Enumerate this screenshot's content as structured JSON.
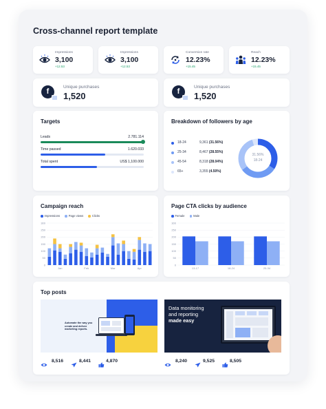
{
  "report": {
    "title": "Cross-channel report template"
  },
  "kpis": [
    {
      "label": "Impressions",
      "value": "3,100",
      "change": "+12.53",
      "icon": "eye-icon"
    },
    {
      "label": "Impressions",
      "value": "3,100",
      "change": "+12.53",
      "icon": "eye-icon"
    },
    {
      "label": "Conversion rate",
      "value": "12.23%",
      "change": "+15.45",
      "icon": "refresh-icon"
    },
    {
      "label": "Reach",
      "value": "12.23%",
      "change": "+15.45",
      "icon": "people-icon"
    }
  ],
  "unique_purchases": [
    {
      "label": "Unique purchases",
      "value": "1,520",
      "icon": "facebook-icon",
      "logo_letter": "f"
    },
    {
      "label": "Unique purchases",
      "value": "1,520",
      "icon": "facebook-icon",
      "logo_letter": "f"
    }
  ],
  "targets": {
    "title": "Targets",
    "rows": [
      {
        "label": "Leads",
        "value": "2.781.114",
        "progress": 1.0,
        "color": "#1a8a5a"
      },
      {
        "label": "Time passed",
        "value": "1.620.033",
        "progress": 0.63,
        "color": "#2d5ee8"
      },
      {
        "label": "Total spent",
        "value": "US$ 1,100.000",
        "progress": 0.55,
        "color": "#2d5ee8"
      }
    ]
  },
  "followers": {
    "title": "Breakdown of followers by age",
    "rows": [
      {
        "age": "18-24",
        "count": "9,361",
        "pct": "(31.56%)",
        "color": "#2d5ee8",
        "share": 31.56
      },
      {
        "age": "25-34",
        "count": "8,467",
        "pct": "(28.55%)",
        "color": "#6f9bf3",
        "share": 28.55
      },
      {
        "age": "45-54",
        "count": "8,318",
        "pct": "(28.04%)",
        "color": "#a8c3f8",
        "share": 28.04
      },
      {
        "age": "65+",
        "count": "3,355",
        "pct": "(4.50%)",
        "color": "#dce6fb",
        "share": 4.5
      }
    ],
    "donut_pct": "31.56%",
    "donut_label": "18-24"
  },
  "campaign": {
    "title": "Campaign reach",
    "legend": [
      {
        "name": "Impressions",
        "color": "#2d5ee8"
      },
      {
        "name": "Page views",
        "color": "#8eb0f5"
      },
      {
        "name": "Clicks",
        "color": "#f5c242"
      }
    ]
  },
  "cta": {
    "title": "Page CTA clicks by audience",
    "legend": [
      {
        "name": "Female",
        "color": "#2d5ee8"
      },
      {
        "name": "Male",
        "color": "#8eb0f5"
      }
    ]
  },
  "chart_data": [
    {
      "type": "bar",
      "stacked": true,
      "title": "Campaign reach",
      "ylim": [
        0,
        300
      ],
      "yticks": [
        "300",
        "250",
        "200",
        "150",
        "100",
        "50",
        "0"
      ],
      "xtick_labels": [
        "Jan",
        "Feb",
        "Mar",
        "Apr"
      ],
      "series": [
        {
          "name": "Impressions",
          "values": [
            60,
            105,
            95,
            45,
            85,
            110,
            95,
            65,
            55,
            75,
            90,
            60,
            140,
            75,
            100,
            45,
            40,
            110,
            95,
            100
          ]
        },
        {
          "name": "Page views",
          "values": [
            60,
            45,
            25,
            30,
            45,
            55,
            45,
            55,
            35,
            45,
            35,
            20,
            60,
            80,
            50,
            55,
            55,
            70,
            60,
            50
          ]
        },
        {
          "name": "Clicks",
          "values": [
            0,
            40,
            30,
            0,
            20,
            0,
            20,
            0,
            0,
            25,
            0,
            0,
            20,
            0,
            25,
            0,
            20,
            20,
            0,
            0
          ]
        }
      ],
      "colors": [
        "#2d5ee8",
        "#8eb0f5",
        "#f5c242"
      ]
    },
    {
      "type": "bar",
      "title": "Page CTA clicks by audience",
      "ylim": [
        0,
        300
      ],
      "yticks": [
        "300",
        "250",
        "200",
        "150",
        "100",
        "50",
        "0"
      ],
      "categories": [
        "13-17",
        "18-24",
        "25-34"
      ],
      "series": [
        {
          "name": "Female",
          "values": [
            205,
            205,
            205
          ]
        },
        {
          "name": "Male",
          "values": [
            170,
            170,
            170
          ]
        }
      ],
      "colors": [
        "#2d5ee8",
        "#8eb0f5"
      ]
    }
  ],
  "top_posts": {
    "title": "Top posts",
    "posts": [
      {
        "thumb_text": "Automate the way you create and deliver marketing reports.",
        "views": "8,516",
        "shares": "8,441",
        "likes": "4,870"
      },
      {
        "thumb_line1": "Data monitoring",
        "thumb_line2": "and reporting",
        "thumb_line3": "made easy",
        "views": "8,240",
        "shares": "9,525",
        "likes": "8,505"
      }
    ]
  }
}
